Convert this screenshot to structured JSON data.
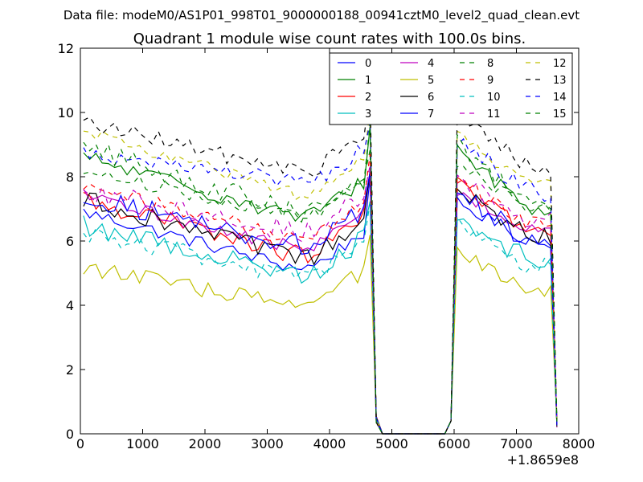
{
  "chart_data": {
    "type": "line",
    "suptitle": "Data file: modeM0/AS1P01_998T01_9000000188_00941cztM0_level2_quad_clean.evt",
    "title": "Quadrant 1 module wise count rates with 100.0s bins.",
    "xlabel": "",
    "ylabel": "",
    "xlim": [
      0,
      8000
    ],
    "ylim": [
      0,
      12
    ],
    "x_offset_label": "+1.8659e8",
    "x_ticks": [
      0,
      1000,
      2000,
      3000,
      4000,
      5000,
      6000,
      7000,
      8000
    ],
    "y_ticks": [
      0,
      2,
      4,
      6,
      8,
      10,
      12
    ],
    "x_tick_labels": [
      "0",
      "1000",
      "2000",
      "3000",
      "4000",
      "5000",
      "6000",
      "7000",
      "8000"
    ],
    "y_tick_labels": [
      "0",
      "2",
      "4",
      "6",
      "8",
      "10",
      "12"
    ],
    "legend_position": "top-right",
    "series": [
      {
        "name": "0",
        "color": "#0000ff",
        "style": "solid",
        "levels": [
          6.9,
          5.2,
          7.2,
          6.0
        ]
      },
      {
        "name": "1",
        "color": "#008000",
        "style": "solid",
        "levels": [
          8.6,
          6.8,
          8.9,
          7.0
        ]
      },
      {
        "name": "2",
        "color": "#ff0000",
        "style": "solid",
        "levels": [
          7.3,
          5.6,
          8.0,
          6.2
        ]
      },
      {
        "name": "3",
        "color": "#00bfbf",
        "style": "solid",
        "levels": [
          6.5,
          5.0,
          6.8,
          5.4
        ]
      },
      {
        "name": "4",
        "color": "#bf00bf",
        "style": "solid",
        "levels": [
          7.4,
          5.8,
          7.6,
          6.3
        ]
      },
      {
        "name": "5",
        "color": "#bfbf00",
        "style": "solid",
        "levels": [
          5.2,
          4.0,
          5.6,
          4.4
        ]
      },
      {
        "name": "6",
        "color": "#000000",
        "style": "solid",
        "levels": [
          7.3,
          5.5,
          7.5,
          6.2
        ]
      },
      {
        "name": "7",
        "color": "#0000ff",
        "style": "solid",
        "levels": [
          7.4,
          5.9,
          7.5,
          6.0
        ]
      },
      {
        "name": "8",
        "color": "#008000",
        "style": "dashed",
        "levels": [
          8.2,
          6.8,
          8.4,
          7.0
        ]
      },
      {
        "name": "9",
        "color": "#ff0000",
        "style": "dashed",
        "levels": [
          7.7,
          6.1,
          8.0,
          6.5
        ]
      },
      {
        "name": "10",
        "color": "#00bfbf",
        "style": "dashed",
        "levels": [
          6.3,
          4.9,
          6.5,
          5.2
        ]
      },
      {
        "name": "11",
        "color": "#bf00bf",
        "style": "dashed",
        "levels": [
          7.6,
          6.3,
          7.9,
          6.7
        ]
      },
      {
        "name": "12",
        "color": "#bfbf00",
        "style": "dashed",
        "levels": [
          9.4,
          7.5,
          9.4,
          7.7
        ]
      },
      {
        "name": "13",
        "color": "#000000",
        "style": "dashed",
        "levels": [
          9.7,
          8.2,
          10.0,
          8.3
        ]
      },
      {
        "name": "14",
        "color": "#0000ff",
        "style": "dashed",
        "levels": [
          8.8,
          7.8,
          9.2,
          7.5
        ]
      },
      {
        "name": "15",
        "color": "#008000",
        "style": "dashed",
        "levels": [
          8.9,
          6.9,
          9.0,
          7.1
        ]
      }
    ]
  }
}
